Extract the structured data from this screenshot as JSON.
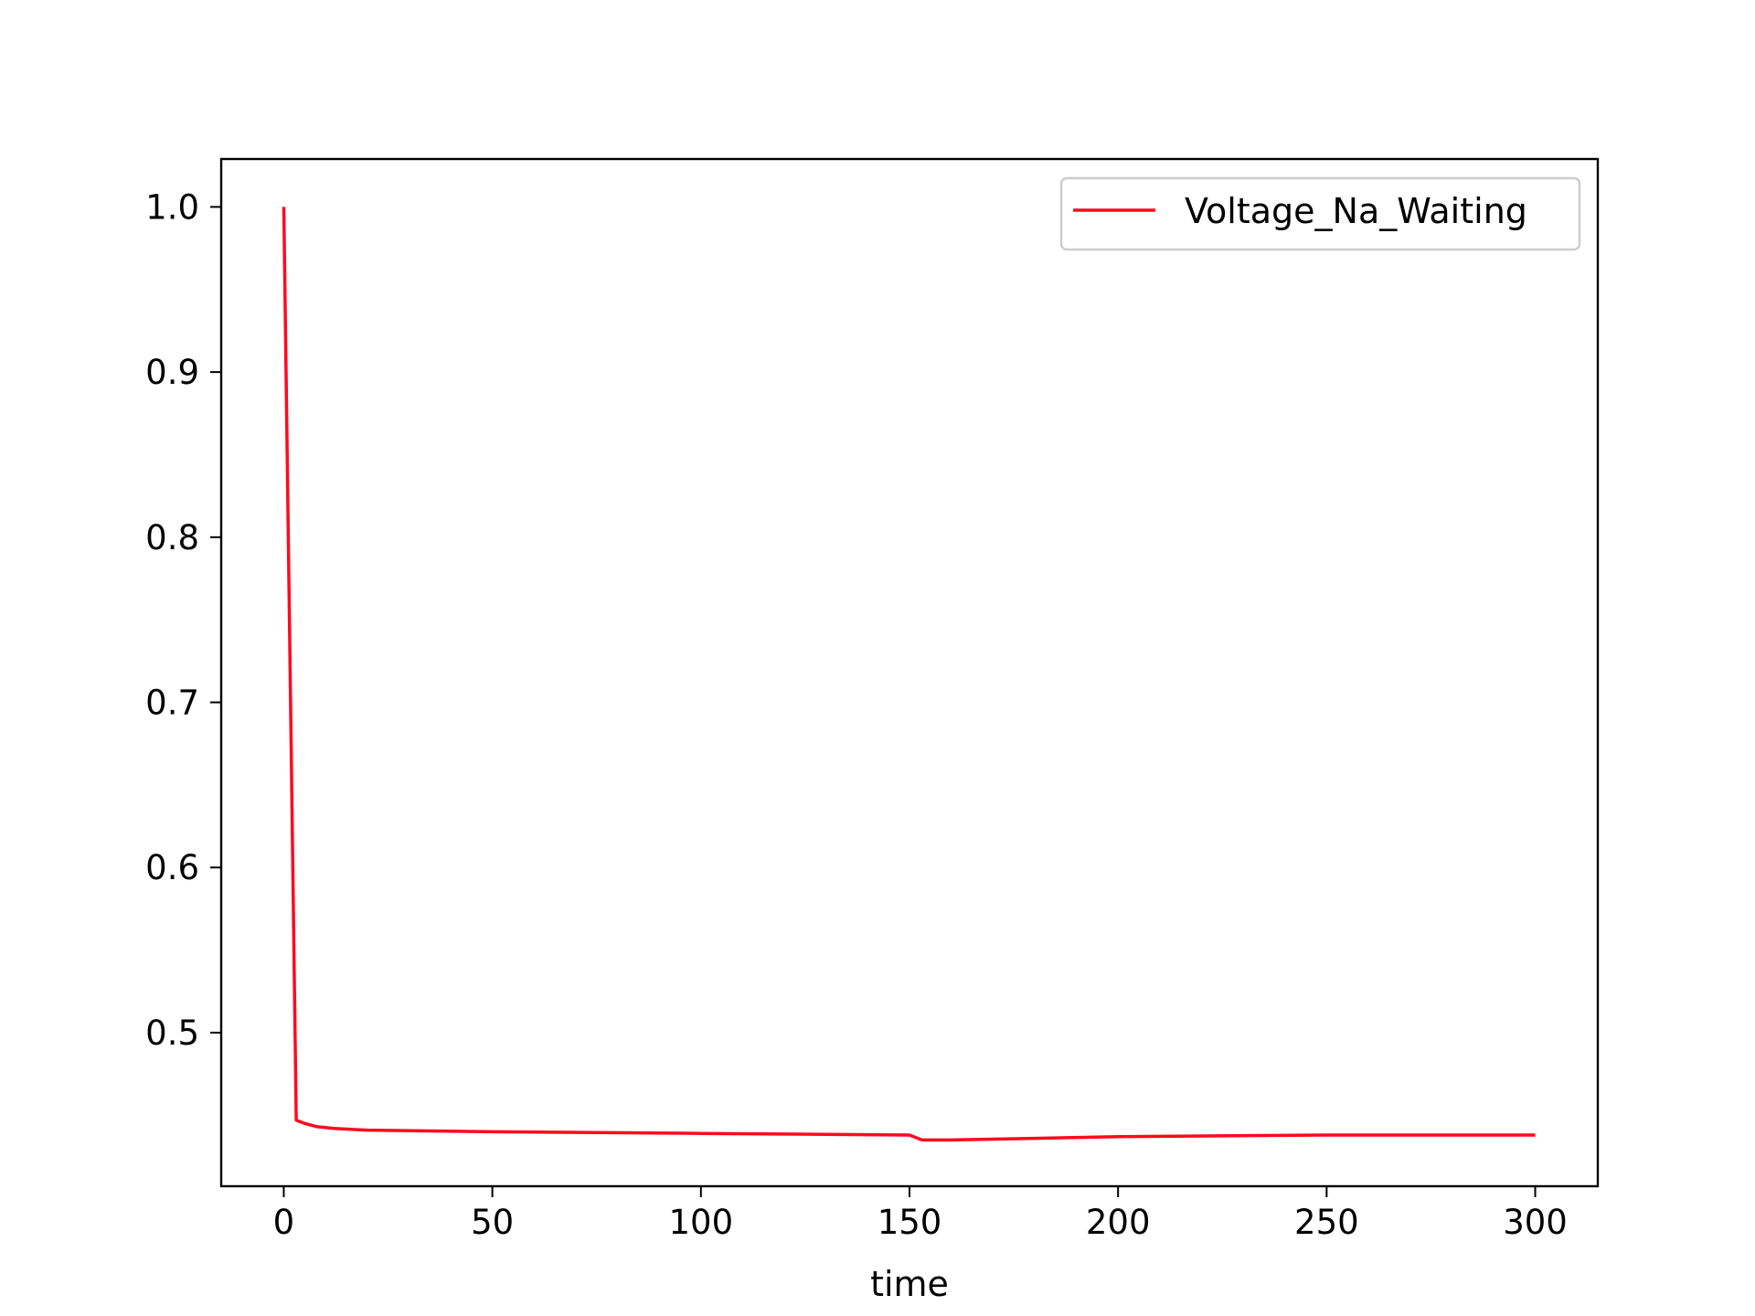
{
  "chart_data": {
    "type": "line",
    "title": "",
    "xlabel": "time",
    "ylabel": "",
    "xlim": [
      -15,
      315
    ],
    "ylim": [
      0.407,
      1.029
    ],
    "x_ticks": [
      0,
      50,
      100,
      150,
      200,
      250,
      300
    ],
    "y_ticks": [
      0.5,
      0.6,
      0.7,
      0.8,
      0.9,
      1.0
    ],
    "x_tick_labels": [
      "0",
      "50",
      "100",
      "150",
      "200",
      "250",
      "300"
    ],
    "y_tick_labels": [
      "0.5",
      "0.6",
      "0.7",
      "0.8",
      "0.9",
      "1.0"
    ],
    "grid": false,
    "legend": "top-right",
    "series": [
      {
        "name": "Voltage_Na_Waiting",
        "color": "#ff0a1e",
        "x": [
          0,
          3,
          5,
          8,
          12,
          20,
          50,
          100,
          150,
          153,
          160,
          200,
          250,
          300
        ],
        "y": [
          1.0,
          0.447,
          0.445,
          0.443,
          0.442,
          0.441,
          0.44,
          0.439,
          0.438,
          0.435,
          0.435,
          0.437,
          0.438,
          0.438
        ]
      }
    ]
  }
}
